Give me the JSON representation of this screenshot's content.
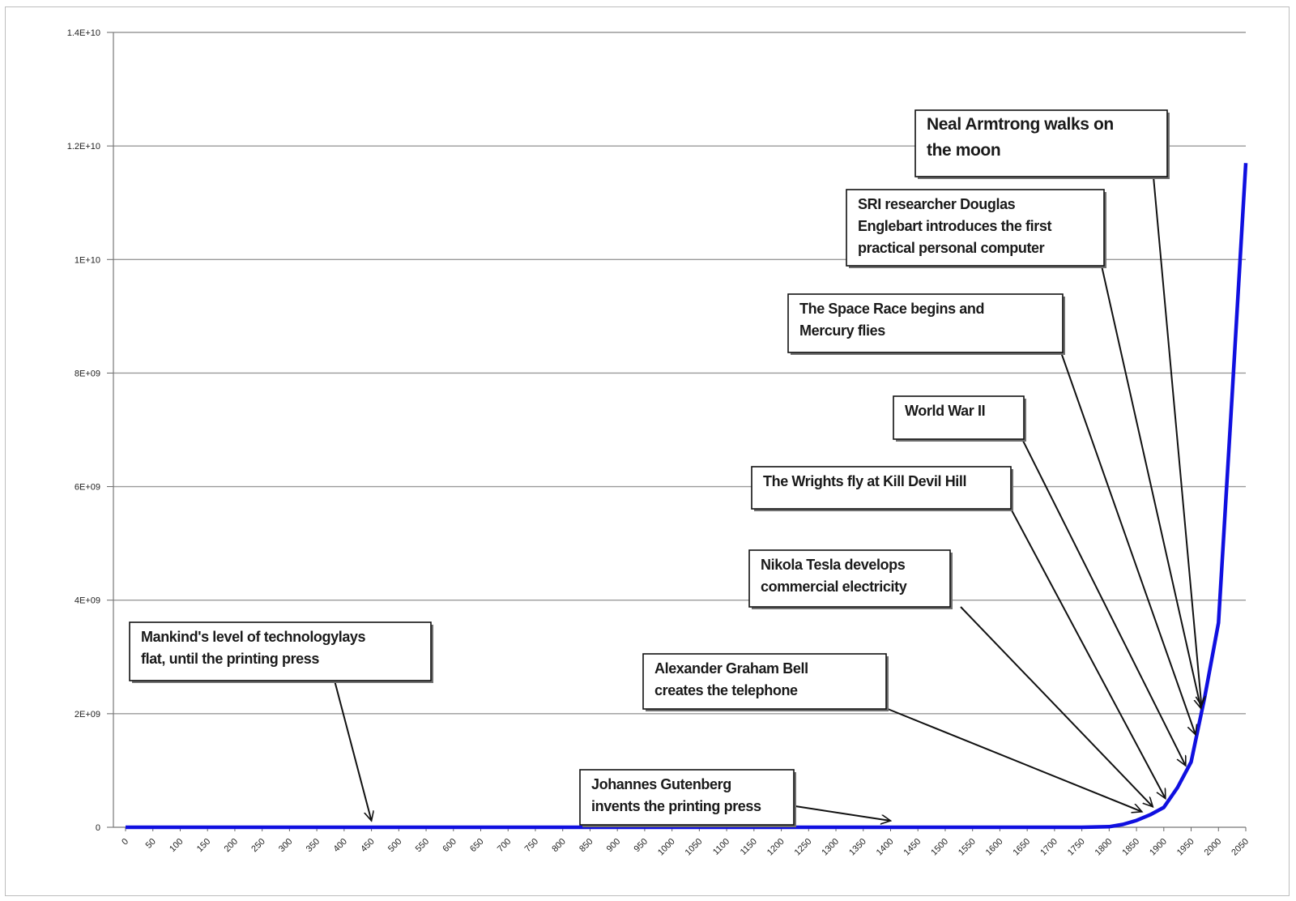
{
  "chart_data": {
    "type": "line",
    "title": "",
    "xlabel": "",
    "ylabel": "",
    "ylim": [
      0,
      14000000000
    ],
    "xlim": [
      0,
      2050
    ],
    "grid": true,
    "line_color": "#1010e0",
    "yticks": [
      {
        "value": 0,
        "label": "0"
      },
      {
        "value": 2000000000,
        "label": "2E+09"
      },
      {
        "value": 4000000000,
        "label": "4E+09"
      },
      {
        "value": 6000000000,
        "label": "6E+09"
      },
      {
        "value": 8000000000,
        "label": "8E+09"
      },
      {
        "value": 10000000000,
        "label": "1E+10"
      },
      {
        "value": 12000000000,
        "label": "1.2E+10"
      },
      {
        "value": 14000000000,
        "label": "1.4E+10"
      }
    ],
    "xticks": [
      "0",
      "50",
      "100",
      "150",
      "200",
      "250",
      "300",
      "350",
      "400",
      "450",
      "500",
      "550",
      "600",
      "650",
      "700",
      "750",
      "800",
      "850",
      "900",
      "950",
      "1000",
      "1050",
      "1100",
      "1150",
      "1200",
      "1250",
      "1300",
      "1350",
      "1400",
      "1450",
      "1500",
      "1550",
      "1600",
      "1650",
      "1700",
      "1750",
      "1800",
      "1850",
      "1900",
      "1950",
      "2000",
      "2050"
    ],
    "series": [
      {
        "x": [
          0,
          1750,
          1800,
          1825,
          1850,
          1875,
          1900,
          1925,
          1950,
          1975,
          2000,
          2025,
          2050
        ],
        "values": [
          0,
          0,
          10000000,
          50000000,
          120000000,
          220000000,
          350000000,
          700000000,
          1150000000,
          2300000000,
          3600000000,
          7600000000,
          11700000000
        ]
      }
    ],
    "annotations": [
      {
        "text": "Mankind's level of technology lays flat, until the printing press",
        "lines": [
          "Mankind's level of technologylays",
          "flat, until the printing press"
        ],
        "x": 450
      },
      {
        "text": "Johannes Gutenberg invents the printing press",
        "lines": [
          "Johannes Gutenberg",
          "invents the printing press"
        ],
        "x": 1400
      },
      {
        "text": "Alexander Graham Bell creates the telephone",
        "lines": [
          "Alexander Graham Bell",
          "creates the telephone"
        ],
        "x": 1860
      },
      {
        "text": "Nikola Tesla develops commercial electricity",
        "lines": [
          "Nikola Tesla develops",
          "commercial electricity"
        ],
        "x": 1880
      },
      {
        "text": "The Wrights fly at Kill Devil Hill",
        "lines": [
          "The Wrights fly at Kill Devil Hill"
        ],
        "x": 1903
      },
      {
        "text": "World War II",
        "lines": [
          "World War II"
        ],
        "x": 1940
      },
      {
        "text": "The Space Race begins and Mercury flies",
        "lines": [
          "The Space Race begins and",
          "Mercury flies"
        ],
        "x": 1958
      },
      {
        "text": "SRI researcher Douglas Englebart introduces the first practical personal computer",
        "lines": [
          "SRI researcher Douglas",
          "Englebart introduces the first",
          "practical personal computer"
        ],
        "x": 1968
      },
      {
        "text": "Neal Armtrong walks on the moon",
        "lines": [
          "Neal Armtrong walks on",
          "the moon"
        ],
        "x": 1969
      }
    ]
  }
}
